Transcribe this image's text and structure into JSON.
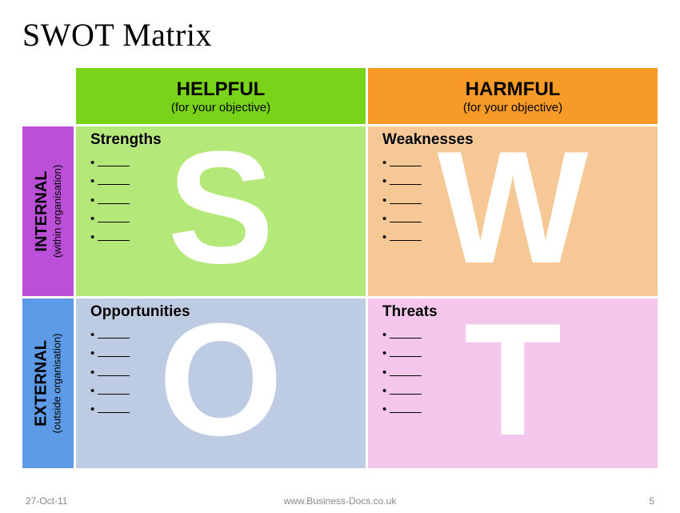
{
  "title": "SWOT Matrix",
  "columns": {
    "helpful": {
      "label": "HELPFUL",
      "sub": "(for your objective)",
      "bg": "#79d319"
    },
    "harmful": {
      "label": "HARMFUL",
      "sub": "(for your objective)",
      "bg": "#f89a27"
    }
  },
  "rows": {
    "internal": {
      "label": "INTERNAL",
      "sub": "(within organisation)",
      "bg": "#bb4fd8"
    },
    "external": {
      "label": "EXTERNAL",
      "sub": "(outside organisation)",
      "bg": "#5e9be6"
    }
  },
  "cells": {
    "s": {
      "letter": "S",
      "label": "Strengths",
      "bg": "#b4e879",
      "bullets": 5
    },
    "w": {
      "letter": "W",
      "label": "Weaknesses",
      "bg": "#f6c896",
      "bullets": 5
    },
    "o": {
      "letter": "O",
      "label": "Opportunities",
      "bg": "#bdcbe3",
      "bullets": 5
    },
    "t": {
      "letter": "T",
      "label": "Threats",
      "bg": "#f5c6ec",
      "bullets": 5
    }
  },
  "footer": {
    "date": "27-Oct-11",
    "source": "www.Business-Docs.co.uk",
    "page": "5"
  },
  "style": {
    "title_fontsize": 40,
    "letter_fontsize": 200,
    "cell_label_fontsize": 19,
    "colhead_fontsize": 24,
    "rowhead_fontsize": 20,
    "footer_fontsize": 12,
    "letter_color": "#ffffff",
    "text_color": "#000000",
    "footer_color": "#888888",
    "slide_bg": "#ffffff"
  }
}
